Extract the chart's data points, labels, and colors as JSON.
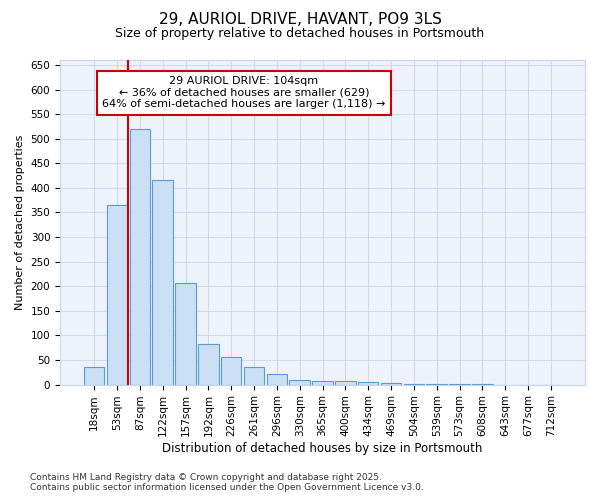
{
  "title": "29, AURIOL DRIVE, HAVANT, PO9 3LS",
  "subtitle": "Size of property relative to detached houses in Portsmouth",
  "xlabel": "Distribution of detached houses by size in Portsmouth",
  "ylabel": "Number of detached properties",
  "footnote1": "Contains HM Land Registry data © Crown copyright and database right 2025.",
  "footnote2": "Contains public sector information licensed under the Open Government Licence v3.0.",
  "annotation_line1": "29 AURIOL DRIVE: 104sqm",
  "annotation_line2": "← 36% of detached houses are smaller (629)",
  "annotation_line3": "64% of semi-detached houses are larger (1,118) →",
  "bar_labels": [
    "18sqm",
    "53sqm",
    "87sqm",
    "122sqm",
    "157sqm",
    "192sqm",
    "226sqm",
    "261sqm",
    "296sqm",
    "330sqm",
    "365sqm",
    "400sqm",
    "434sqm",
    "469sqm",
    "504sqm",
    "539sqm",
    "573sqm",
    "608sqm",
    "643sqm",
    "677sqm",
    "712sqm"
  ],
  "bar_values": [
    35,
    365,
    520,
    415,
    207,
    83,
    57,
    35,
    22,
    10,
    8,
    8,
    5,
    3,
    2,
    1,
    1,
    1,
    0,
    0,
    0
  ],
  "red_line_x": 2.5,
  "bar_color": "#cce0f5",
  "bar_edge_color": "#5b9bd5",
  "red_line_color": "#cc0000",
  "annotation_box_color": "#cc0000",
  "background_color": "#ffffff",
  "plot_bg_color": "#eef3fb",
  "grid_color": "#c8d4e8",
  "ylim": [
    0,
    660
  ],
  "yticks": [
    0,
    50,
    100,
    150,
    200,
    250,
    300,
    350,
    400,
    450,
    500,
    550,
    600,
    650
  ],
  "title_fontsize": 11,
  "subtitle_fontsize": 9,
  "tick_fontsize": 7.5,
  "ylabel_fontsize": 8,
  "xlabel_fontsize": 8.5,
  "annotation_fontsize": 8,
  "footnote_fontsize": 6.5
}
